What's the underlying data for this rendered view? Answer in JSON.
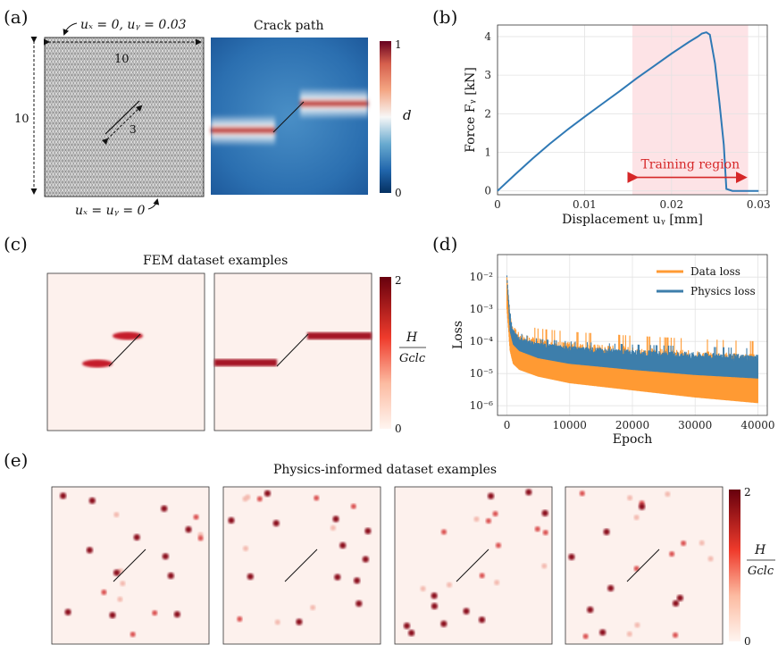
{
  "panels": {
    "a": {
      "label": "(a)",
      "bc_top": "uₓ = 0, uᵧ = 0.03",
      "bc_bottom": "uₓ = uᵧ = 0",
      "width_label": "10",
      "height_label": "10",
      "crack_label": "3",
      "crack_title": "Crack path",
      "colorbar": {
        "max": "1",
        "min": "0",
        "symbol": "d"
      }
    },
    "b": {
      "label": "(b)",
      "training_label": "Training region"
    },
    "c": {
      "label": "(c)",
      "title": "FEM dataset examples",
      "colorbar": {
        "max": "2",
        "min": "0",
        "num": "H",
        "den": "Gᴄlᴄ"
      }
    },
    "d": {
      "label": "(d)"
    },
    "e": {
      "label": "(e)",
      "title": "Physics-informed dataset examples",
      "colorbar": {
        "max": "2",
        "min": "0",
        "num": "H",
        "den": "Gᴄlᴄ"
      }
    }
  },
  "colors": {
    "force_line": "#2f79b5",
    "data_loss": "#ff9a33",
    "physics_loss": "#3d7eab",
    "training_region": "#fde3e6",
    "training_arrow": "#d62728",
    "field_dark": "#8b0a1a"
  },
  "chart_data": [
    {
      "type": "line",
      "panel": "b",
      "xlabel": "Displacement  uᵧ  [mm]",
      "ylabel": "Force  Fᵧ  [kN]",
      "xlim": [
        0,
        0.031
      ],
      "ylim": [
        -0.1,
        4.3
      ],
      "xticks": [
        "0",
        "0.01",
        "0.02",
        "0.03"
      ],
      "yticks": [
        "0",
        "1",
        "2",
        "3",
        "4"
      ],
      "grid": true,
      "training_region": [
        0.0155,
        0.0288
      ],
      "series": [
        {
          "x": [
            0,
            0.002,
            0.004,
            0.006,
            0.008,
            0.01,
            0.012,
            0.014,
            0.016,
            0.018,
            0.02,
            0.022,
            0.023,
            0.0235,
            0.024,
            0.0244,
            0.025,
            0.0255,
            0.026,
            0.0263,
            0.027,
            0.028,
            0.03
          ],
          "y": [
            0,
            0.42,
            0.83,
            1.22,
            1.58,
            1.92,
            2.25,
            2.58,
            2.92,
            3.24,
            3.56,
            3.86,
            4.0,
            4.08,
            4.11,
            4.05,
            3.3,
            2.3,
            1.2,
            0.05,
            0.0,
            0.0,
            0.0
          ]
        }
      ]
    },
    {
      "type": "line",
      "panel": "d",
      "xlabel": "Epoch",
      "ylabel": "Loss",
      "yscale": "log",
      "xlim": [
        -1500,
        41500
      ],
      "ylim": [
        5e-07,
        0.05
      ],
      "xticks": [
        "0",
        "10000",
        "20000",
        "30000",
        "40000"
      ],
      "yticks": [
        "10⁻⁶",
        "10⁻⁵",
        "10⁻⁴",
        "10⁻³",
        "10⁻²"
      ],
      "legend": "top-right",
      "grid": true,
      "series": [
        {
          "name": "Data loss",
          "band_x": [
            0,
            500,
            1000,
            2000,
            5000,
            10000,
            20000,
            30000,
            40000
          ],
          "band_low": [
            0.001,
            5e-05,
            2e-05,
            1.3e-05,
            8e-06,
            5e-06,
            3e-06,
            1.8e-06,
            1.2e-06
          ],
          "band_high": [
            0.03,
            0.0015,
            0.0006,
            0.00035,
            0.00025,
            0.0002,
            0.00015,
            0.00012,
            0.0001
          ]
        },
        {
          "name": "Physics loss",
          "band_x": [
            0,
            500,
            1000,
            2000,
            5000,
            10000,
            20000,
            30000,
            40000
          ],
          "band_low": [
            0.01,
            0.0002,
            8e-05,
            5e-05,
            3e-05,
            2e-05,
            1.3e-05,
            9e-06,
            7e-06
          ],
          "band_high": [
            0.012,
            0.0008,
            0.0003,
            0.00018,
            0.00012,
            0.0001,
            8e-05,
            7e-05,
            6e-05
          ]
        }
      ]
    }
  ]
}
